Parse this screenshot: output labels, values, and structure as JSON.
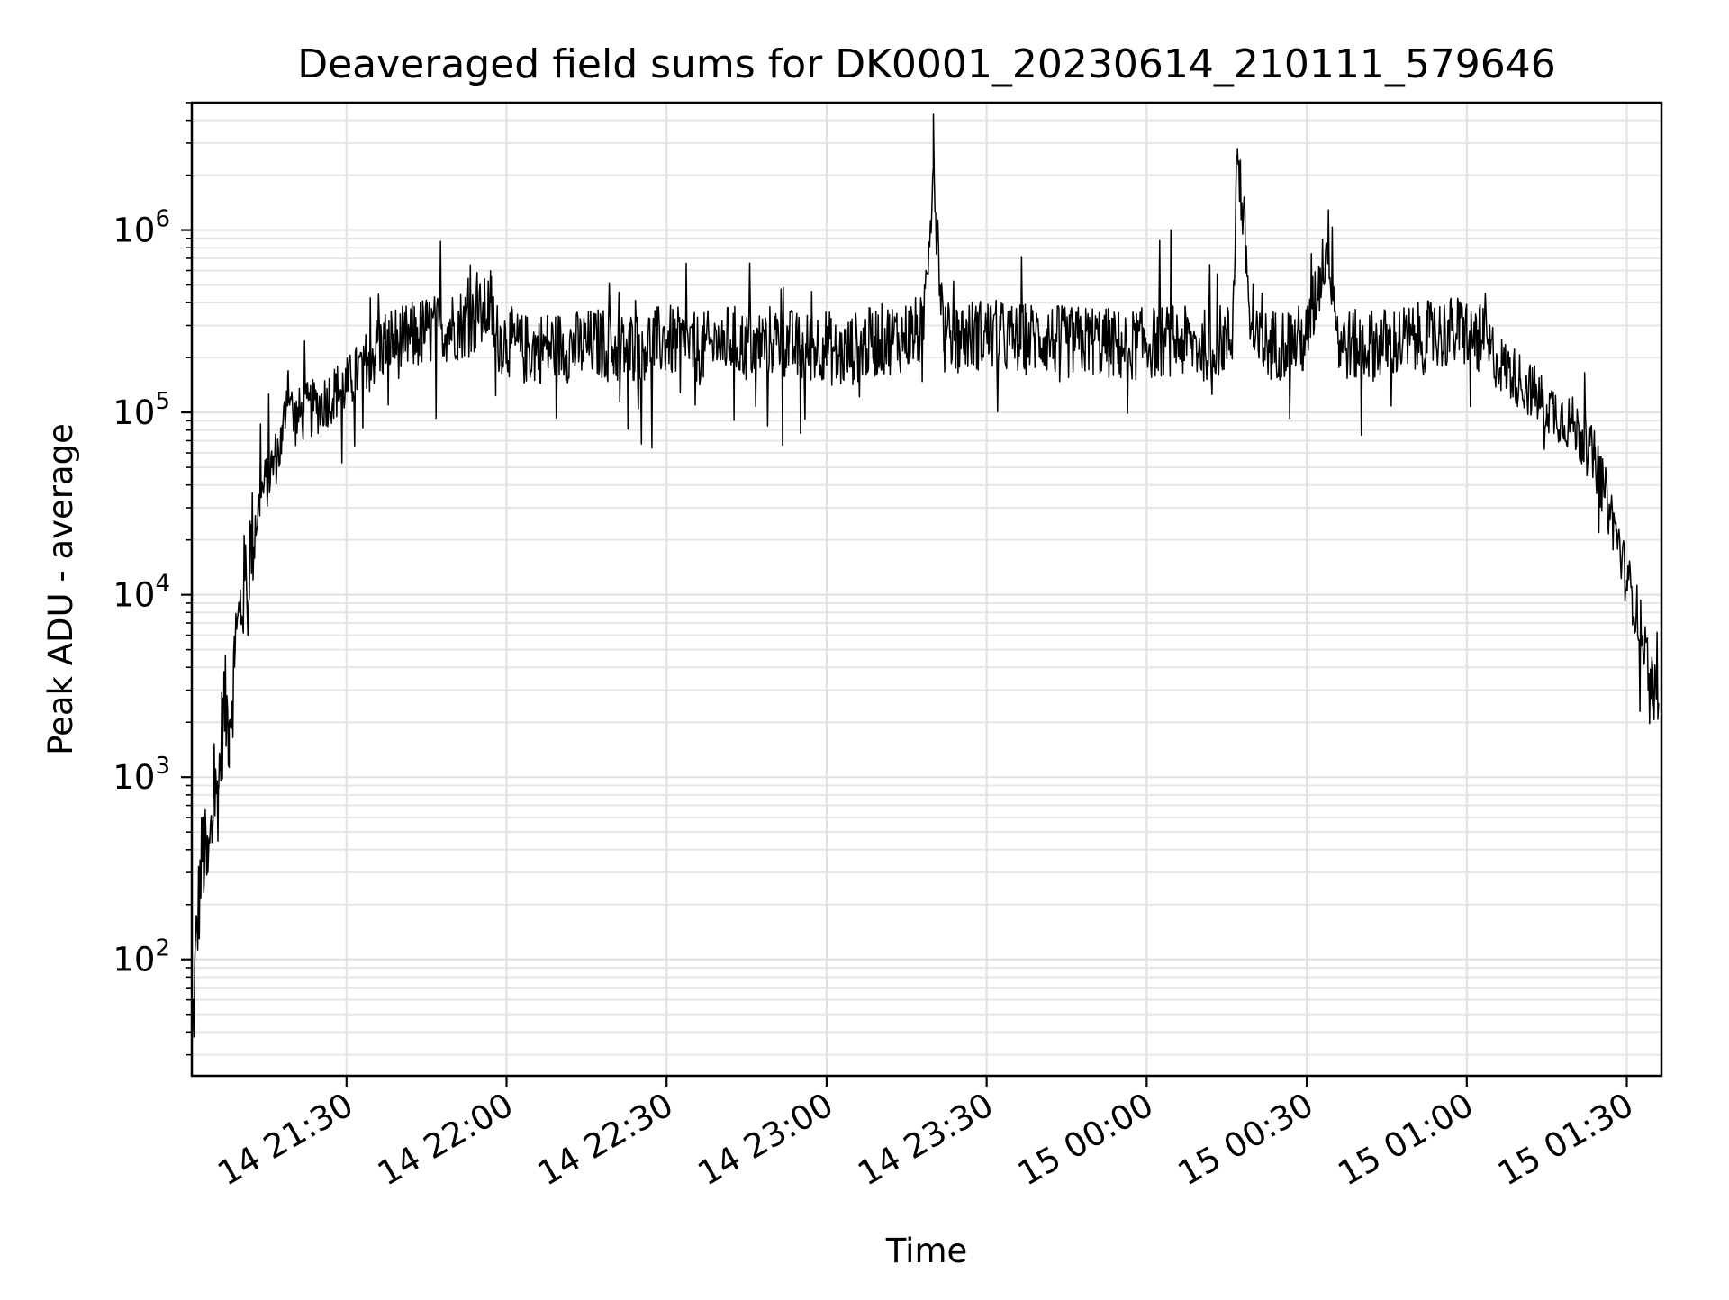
{
  "chart_data": {
    "type": "line",
    "title": "Deaveraged field sums for DK0001_20230614_210111_579646",
    "xlabel": "Time",
    "ylabel": "Peak ADU - average",
    "yscale": "log",
    "ylim": [
      23,
      5000000
    ],
    "xlim": [
      "14 21:01",
      "15 01:36:30"
    ],
    "grid": true,
    "line_color": "#000000",
    "x_ticks": [
      "14 21:30",
      "14 22:00",
      "14 22:30",
      "14 23:00",
      "14 23:30",
      "15 00:00",
      "15 00:30",
      "15 01:00",
      "15 01:30"
    ],
    "y_ticks": [
      {
        "value": 100,
        "base": "10",
        "exp": "2"
      },
      {
        "value": 1000,
        "base": "10",
        "exp": "3"
      },
      {
        "value": 10000,
        "base": "10",
        "exp": "4"
      },
      {
        "value": 100000,
        "base": "10",
        "exp": "5"
      },
      {
        "value": 1000000,
        "base": "10",
        "exp": "6"
      }
    ],
    "series": [
      {
        "x": [
          "14 21:01",
          "14 21:02",
          "14 21:03",
          "14 21:04",
          "14 21:05",
          "14 21:06",
          "14 21:07",
          "14 21:08",
          "14 21:09",
          "14 21:10",
          "14 21:12",
          "14 21:14",
          "14 21:16",
          "14 21:18",
          "14 21:19",
          "14 21:20",
          "14 21:22",
          "14 21:25",
          "14 21:28",
          "14 21:30",
          "14 21:31",
          "14 21:34",
          "14 21:38",
          "14 21:40",
          "14 21:45",
          "14 21:50",
          "14 21:54",
          "14 21:56",
          "14 21:57",
          "14 21:58",
          "14 22:00",
          "14 22:01",
          "14 22:03",
          "14 22:08",
          "14 22:14",
          "14 22:18",
          "14 22:20",
          "14 22:24",
          "14 22:30",
          "14 22:36",
          "14 22:42",
          "14 22:45",
          "14 22:50",
          "14 22:53",
          "14 22:55",
          "14 23:00",
          "14 23:02",
          "14 23:06",
          "14 23:10",
          "14 23:14",
          "14 23:16",
          "14 23:18",
          "14 23:20",
          "14 23:22",
          "14 23:24",
          "14 23:30",
          "14 23:35",
          "14 23:40",
          "14 23:45",
          "14 23:50",
          "14 23:55",
          "15 00:00",
          "15 00:05",
          "15 00:10",
          "15 00:14",
          "15 00:16",
          "15 00:17",
          "15 00:20",
          "15 00:26",
          "15 00:30",
          "15 00:34",
          "15 00:36",
          "15 00:40",
          "15 00:45",
          "15 00:50",
          "15 00:53",
          "15 00:55",
          "15 01:00",
          "15 01:03",
          "15 01:05",
          "15 01:10",
          "15 01:15",
          "15 01:20",
          "15 01:24",
          "15 01:28",
          "15 01:30",
          "15 01:31",
          "15 01:33",
          "15 01:35",
          "15 01:36"
        ],
        "y": [
          30,
          150,
          400,
          300,
          600,
          900,
          2500,
          2000,
          4000,
          8000,
          18000,
          35000,
          50000,
          70000,
          160000,
          90000,
          100000,
          110000,
          130000,
          140000,
          150000,
          200000,
          250000,
          240000,
          280000,
          300000,
          320000,
          350000,
          400000,
          260000,
          250000,
          240000,
          220000,
          230000,
          230000,
          240000,
          220000,
          230000,
          250000,
          220000,
          250000,
          230000,
          250000,
          240000,
          220000,
          240000,
          200000,
          230000,
          250000,
          260000,
          270000,
          280000,
          2200000,
          250000,
          260000,
          270000,
          250000,
          260000,
          240000,
          250000,
          230000,
          240000,
          250000,
          230000,
          250000,
          250000,
          2800000,
          230000,
          240000,
          250000,
          900000,
          240000,
          230000,
          240000,
          250000,
          260000,
          270000,
          280000,
          240000,
          200000,
          150000,
          110000,
          85000,
          55000,
          22000,
          12000,
          10000,
          6000,
          3000,
          2500
        ]
      }
    ]
  }
}
